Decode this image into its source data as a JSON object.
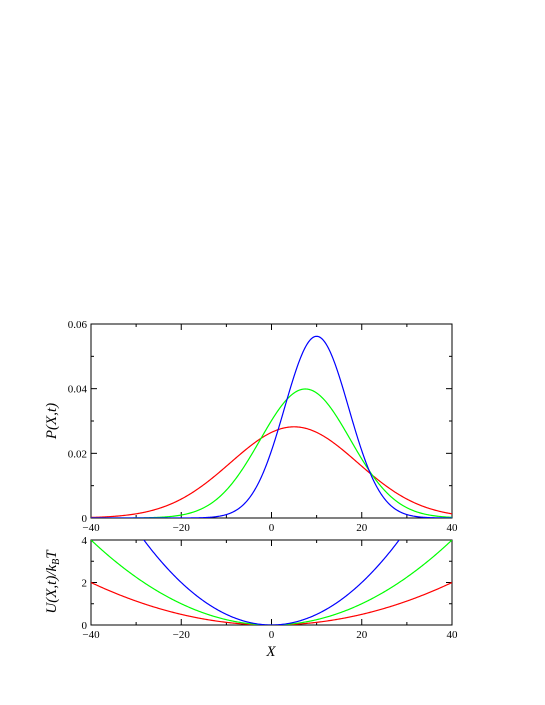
{
  "chart_data": [
    {
      "type": "line",
      "title": "",
      "xlabel": "",
      "ylabel": "P(X,t)",
      "xlim": [
        -40,
        40
      ],
      "ylim": [
        0,
        0.06
      ],
      "xticks": [
        "−40",
        "−20",
        "0",
        "20",
        "40"
      ],
      "yticks": [
        "0",
        "0.02",
        "0.04",
        "0.06"
      ],
      "grid": false,
      "series": [
        {
          "color": "#ff0000",
          "shape": "gaussian",
          "mean": 5,
          "sigma": 14.1,
          "peak": 0.0282
        },
        {
          "color": "#00ff00",
          "shape": "gaussian",
          "mean": 7.5,
          "sigma": 10.0,
          "peak": 0.0399
        },
        {
          "color": "#0000ff",
          "shape": "gaussian",
          "mean": 10,
          "sigma": 7.1,
          "peak": 0.0562
        }
      ]
    },
    {
      "type": "line",
      "title": "",
      "xlabel": "X",
      "ylabel": "U(X,t)/kBT",
      "xlim": [
        -40,
        40
      ],
      "ylim": [
        0,
        4
      ],
      "xticks": [
        "−40",
        "−20",
        "0",
        "20",
        "40"
      ],
      "yticks": [
        "0",
        "2",
        "4"
      ],
      "grid": false,
      "series": [
        {
          "color": "#ff0000",
          "shape": "parabola",
          "coefficient": 0.00125
        },
        {
          "color": "#00ff00",
          "shape": "parabola",
          "coefficient": 0.0025
        },
        {
          "color": "#0000ff",
          "shape": "parabola",
          "coefficient": 0.005
        }
      ]
    }
  ]
}
